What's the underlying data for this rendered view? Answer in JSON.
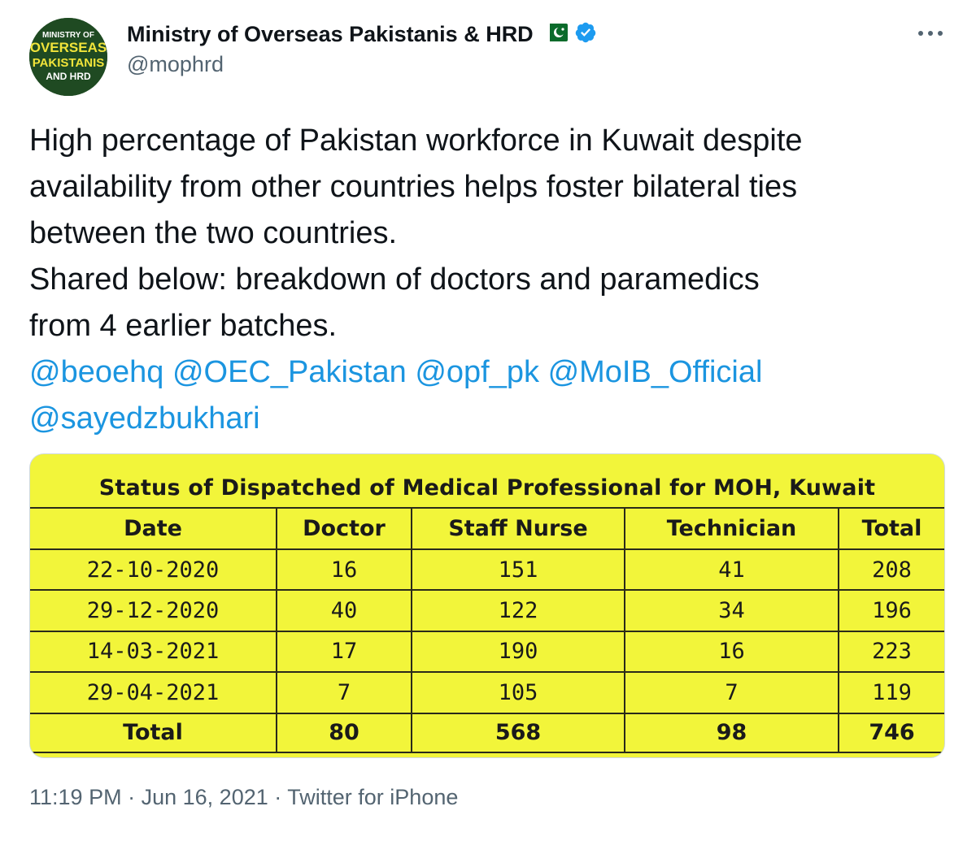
{
  "author": {
    "display_name": "Ministry of Overseas Pakistanis & HRD",
    "handle": "@mophrd",
    "avatar_text": [
      "MINISTRY OF",
      "OVERSEAS",
      "PAKISTANIS",
      "AND HRD"
    ],
    "flag_icon": "pakistan-flag-icon",
    "verified_icon": "verified-badge-icon"
  },
  "tweet": {
    "lines": [
      "High percentage of Pakistan workforce in Kuwait despite",
      "availability from other countries helps foster bilateral ties",
      "between the two countries.",
      "Shared below: breakdown of doctors and paramedics",
      "from 4 earlier batches."
    ],
    "mentions_line1": [
      "@beoehq",
      "@OEC_Pakistan",
      "@opf_pk",
      "@MoIB_Official"
    ],
    "mentions_line2": [
      "@sayedzbukhari"
    ]
  },
  "table": {
    "title": "Status of Dispatched of Medical Professional for MOH, Kuwait",
    "headers": [
      "Date",
      "Doctor",
      "Staff Nurse",
      "Technician",
      "Total"
    ],
    "rows": [
      [
        "22-10-2020",
        "16",
        "151",
        "41",
        "208"
      ],
      [
        "29-12-2020",
        "40",
        "122",
        "34",
        "196"
      ],
      [
        "14-03-2021",
        "17",
        "190",
        "16",
        "223"
      ],
      [
        "29-04-2021",
        "7",
        "105",
        "7",
        "119"
      ]
    ],
    "total": [
      "Total",
      "80",
      "568",
      "98",
      "746"
    ]
  },
  "meta": {
    "time": "11:19 PM",
    "separator": "·",
    "date": "Jun 16, 2021",
    "source": "Twitter for iPhone"
  },
  "colors": {
    "mention": "#1b95e0",
    "table_bg": "#f2f53a",
    "avatar_bg": "#1f4a22",
    "verified": "#1d9bf0"
  },
  "icons": {
    "more": "more-options-icon"
  }
}
